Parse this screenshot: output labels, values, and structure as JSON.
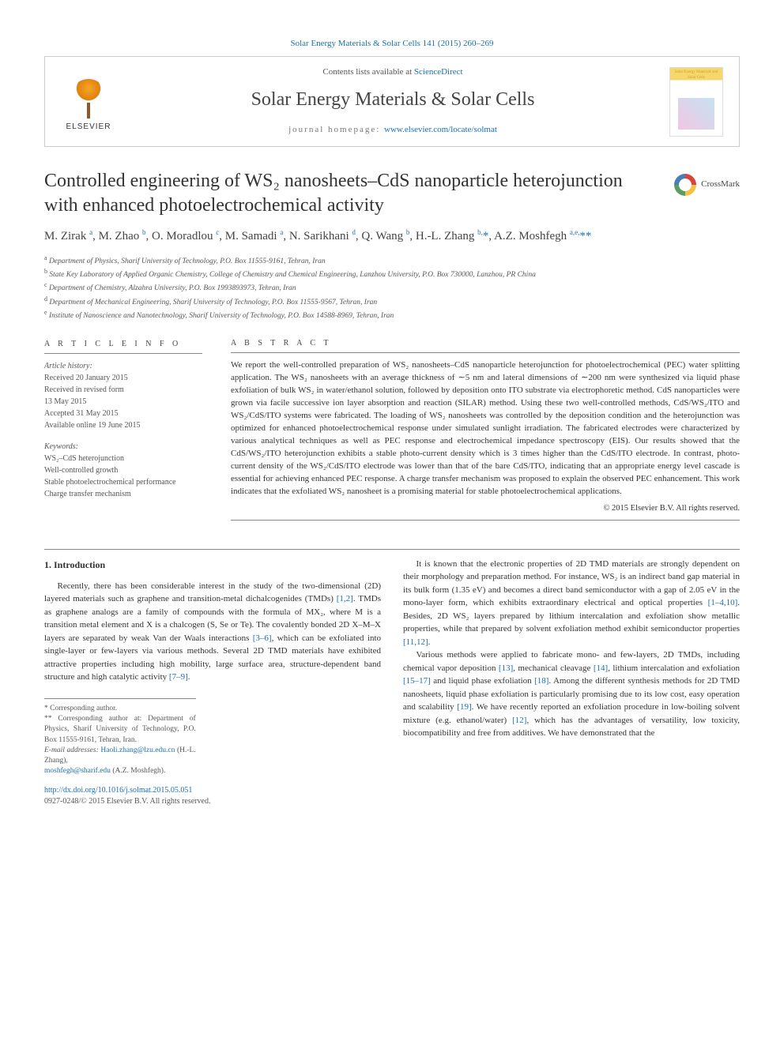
{
  "top_citation": "Solar Energy Materials & Solar Cells 141 (2015) 260–269",
  "header": {
    "contents_prefix": "Contents lists available at ",
    "contents_link": "ScienceDirect",
    "journal_name": "Solar Energy Materials & Solar Cells",
    "homepage_prefix": "journal homepage: ",
    "homepage_url": "www.elsevier.com/locate/solmat",
    "publisher": "ELSEVIER",
    "cover_label": "Solar Energy Materials and Solar Cells"
  },
  "crossmark_label": "CrossMark",
  "title": "Controlled engineering of WS₂ nanosheets–CdS nanoparticle heterojunction with enhanced photoelectrochemical activity",
  "authors_html": "M. Zirak <sup>a</sup>, M. Zhao <sup>b</sup>, O. Moradlou <sup>c</sup>, M. Samadi <sup>a</sup>, N. Sarikhani <sup>d</sup>, Q. Wang <sup>b</sup>, H.-L. Zhang <sup>b,</sup><span class='star'>*</span>, A.Z. Moshfegh <sup>a,e,</sup><span class='star'>**</span>",
  "affiliations": [
    {
      "sup": "a",
      "text": "Department of Physics, Sharif University of Technology, P.O. Box 11555-9161, Tehran, Iran"
    },
    {
      "sup": "b",
      "text": "State Key Laboratory of Applied Organic Chemistry, College of Chemistry and Chemical Engineering, Lanzhou University, P.O. Box 730000, Lanzhou, PR China"
    },
    {
      "sup": "c",
      "text": "Department of Chemistry, Alzahra University, P.O. Box 1993893973, Tehran, Iran"
    },
    {
      "sup": "d",
      "text": "Department of Mechanical Engineering, Sharif University of Technology, P.O. Box 11555-9567, Tehran, Iran"
    },
    {
      "sup": "e",
      "text": "Institute of Nanoscience and Nanotechnology, Sharif University of Technology, P.O. Box 14588-8969, Tehran, Iran"
    }
  ],
  "article_info": {
    "heading": "A R T I C L E  I N F O",
    "history_label": "Article history:",
    "history": [
      "Received 20 January 2015",
      "Received in revised form",
      "13 May 2015",
      "Accepted 31 May 2015",
      "Available online 19 June 2015"
    ],
    "keywords_label": "Keywords:",
    "keywords": [
      "WS₂–CdS heterojunction",
      "Well-controlled growth",
      "Stable photoelectrochemical performance",
      "Charge transfer mechanism"
    ]
  },
  "abstract": {
    "heading": "A B S T R A C T",
    "text": "We report the well-controlled preparation of WS₂ nanosheets–CdS nanoparticle heterojunction for photoelectrochemical (PEC) water splitting application. The WS₂ nanosheets with an average thickness of ∼5 nm and lateral dimensions of ∼200 nm were synthesized via liquid phase exfoliation of bulk WS₂ in water/ethanol solution, followed by deposition onto ITO substrate via electrophoretic method. CdS nanoparticles were grown via facile successive ion layer absorption and reaction (SILAR) method. Using these two well-controlled methods, CdS/WS₂/ITO and WS₂/CdS/ITO systems were fabricated. The loading of WS₂ nanosheets was controlled by the deposition condition and the heterojunction was optimized for enhanced photoelectrochemical response under simulated sunlight irradiation. The fabricated electrodes were characterized by various analytical techniques as well as PEC response and electrochemical impedance spectroscopy (EIS). Our results showed that the CdS/WS₂/ITO heterojunction exhibits a stable photo-current density which is 3 times higher than the CdS/ITO electrode. In contrast, photo-current density of the WS₂/CdS/ITO electrode was lower than that of the bare CdS/ITO, indicating that an appropriate energy level cascade is essential for achieving enhanced PEC response. A charge transfer mechanism was proposed to explain the observed PEC enhancement. This work indicates that the exfoliated WS₂ nanosheet is a promising material for stable photoelectrochemical applications.",
    "copyright": "© 2015 Elsevier B.V. All rights reserved."
  },
  "section1": {
    "heading": "1.  Introduction",
    "para_left": "Recently, there has been considerable interest in the study of the two-dimensional (2D) layered materials such as graphene and transition-metal dichalcogenides (TMDs) <span class='ref'>[1,2]</span>. TMDs as graphene analogs are a family of compounds with the formula of MX₂, where M is a transition metal element and X is a chalcogen (S, Se or Te). The covalently bonded 2D X–M–X layers are separated by weak Van der Waals interactions <span class='ref'>[3–6]</span>, which can be exfoliated into single-layer or few-layers via various methods. Several 2D TMD materials have exhibited attractive properties including high mobility, large surface area, structure-dependent band structure and high catalytic activity <span class='ref'>[7–9]</span>.",
    "para_right1": "It is known that the electronic properties of 2D TMD materials are strongly dependent on their morphology and preparation method. For instance, WS₂ is an indirect band gap material in its bulk form (1.35 eV) and becomes a direct band semiconductor with a gap of 2.05 eV in the mono-layer form, which exhibits extraordinary electrical and optical properties <span class='ref'>[1–4,10]</span>. Besides, 2D WS₂ layers prepared by lithium intercalation and exfoliation show metallic properties, while that prepared by solvent exfoliation method exhibit semiconductor properties <span class='ref'>[11,12]</span>.",
    "para_right2": "Various methods were applied to fabricate mono- and few-layers, 2D TMDs, including chemical vapor deposition <span class='ref'>[13]</span>, mechanical cleavage <span class='ref'>[14]</span>, lithium intercalation and exfoliation <span class='ref'>[15–17]</span> and liquid phase exfoliation <span class='ref'>[18]</span>. Among the different synthesis methods for 2D TMD nanosheets, liquid phase exfoliation is particularly promising due to its low cost, easy operation and scalability <span class='ref'>[19]</span>. We have recently reported an exfoliation procedure in low-boiling solvent mixture (e.g. ethanol/water) <span class='ref'>[12]</span>, which has the advantages of versatility, low toxicity, biocompatibility and free from additives. We have demonstrated that the"
  },
  "footnotes": {
    "corr1": "* Corresponding author.",
    "corr2": "** Corresponding author at: Department of Physics, Sharif University of Technology, P.O. Box 11555-9161, Tehran, Iran.",
    "email_label": "E-mail addresses: ",
    "email1": "Haoli.zhang@lzu.edu.cn",
    "email1_name": " (H.-L. Zhang),",
    "email2": "moshfegh@sharif.edu",
    "email2_name": " (A.Z. Moshfegh)."
  },
  "doi": {
    "url": "http://dx.doi.org/10.1016/j.solmat.2015.05.051",
    "issn": "0927-0248/© 2015 Elsevier B.V. All rights reserved."
  },
  "colors": {
    "link": "#1a6fb3",
    "text": "#333333",
    "muted": "#555555",
    "rule": "#888888"
  }
}
